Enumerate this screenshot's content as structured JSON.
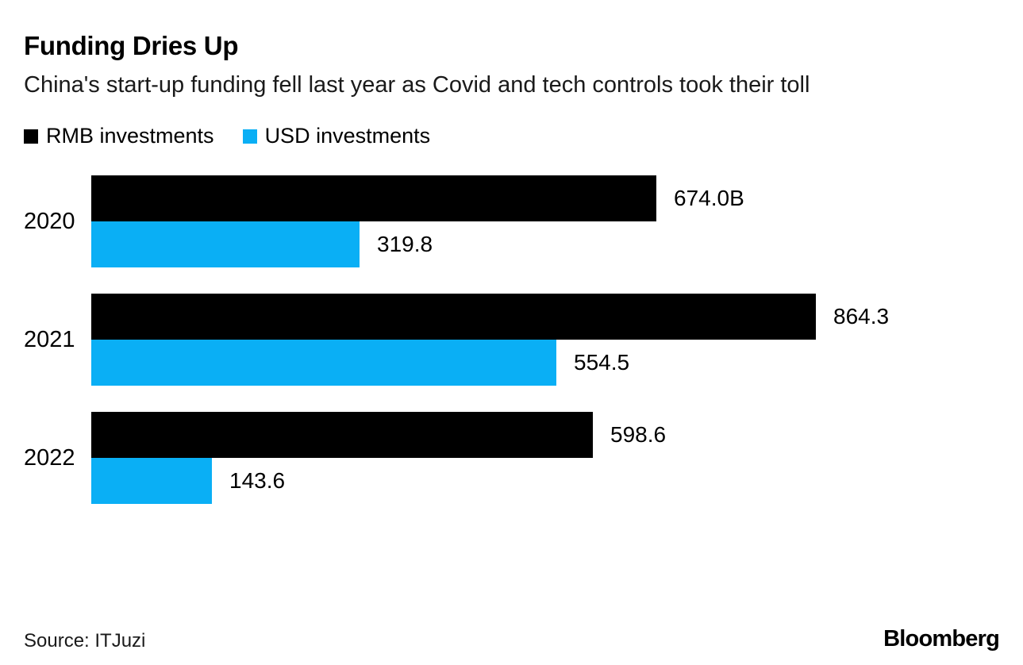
{
  "header": {
    "title": "Funding Dries Up",
    "subtitle": "China's start-up funding fell last year as Covid and tech controls took their toll"
  },
  "legend": {
    "items": [
      {
        "key": "rmb",
        "label": "RMB investments",
        "color": "#000000"
      },
      {
        "key": "usd",
        "label": "USD investments",
        "color": "#0AAFF5"
      }
    ]
  },
  "chart_data": {
    "type": "bar",
    "orientation": "horizontal",
    "title": "Funding Dries Up",
    "subtitle": "China's start-up funding fell last year as Covid and tech controls took their toll",
    "categories": [
      "2020",
      "2021",
      "2022"
    ],
    "series": [
      {
        "name": "RMB investments",
        "key": "rmb",
        "color": "#000000",
        "values": [
          674.0,
          864.3,
          598.6
        ],
        "value_labels": [
          "674.0B",
          "864.3",
          "598.6"
        ]
      },
      {
        "name": "USD investments",
        "key": "usd",
        "color": "#0AAFF5",
        "values": [
          319.8,
          554.5,
          143.6
        ],
        "value_labels": [
          "319.8",
          "554.5",
          "143.6"
        ]
      }
    ],
    "xlabel": "",
    "ylabel": "",
    "xlim": [
      0,
      864.3
    ],
    "grid": false,
    "value_labels_shown": true,
    "legend_position": "top"
  },
  "footer": {
    "source": "Source: ITJuzi",
    "brand": "Bloomberg"
  }
}
